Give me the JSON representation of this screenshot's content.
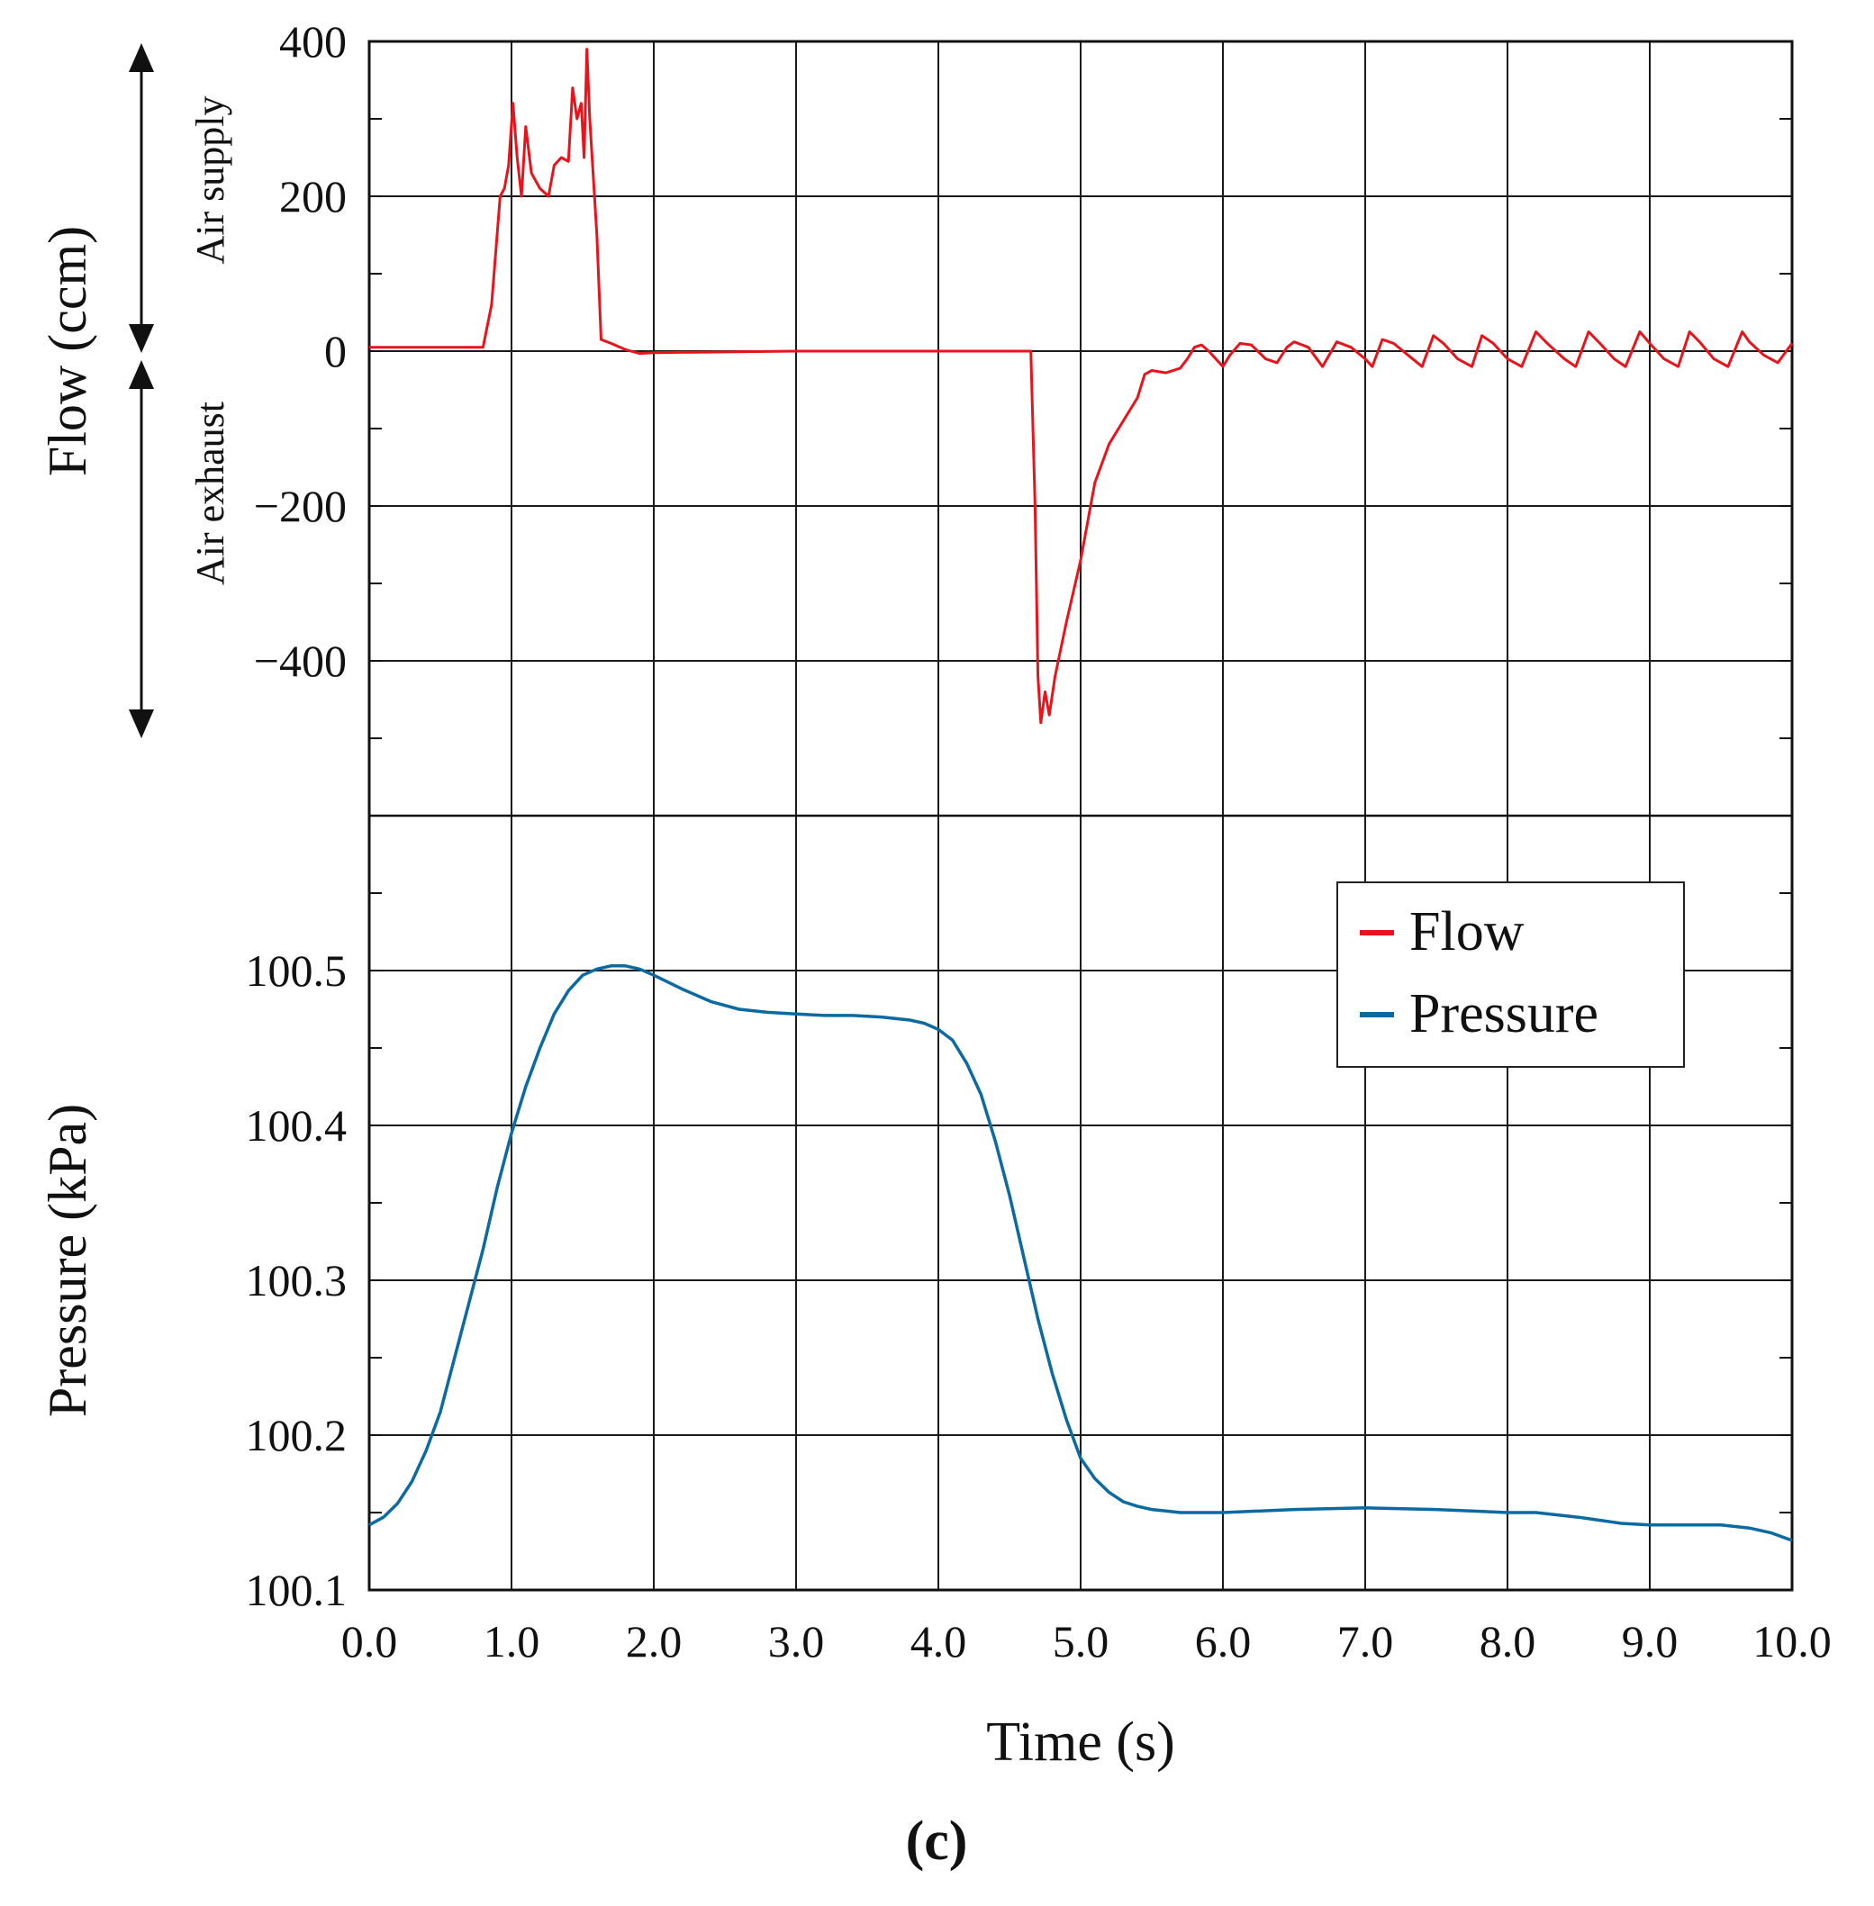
{
  "figure": {
    "panel_label": "(c)"
  },
  "colors": {
    "flow": "#e8141c",
    "pressure": "#0a6aa1",
    "grid": "#1a1a1a",
    "axis": "#111111"
  },
  "chart_data": {
    "type": "line",
    "x_axis": {
      "label": "Time (s)",
      "range": [
        0,
        10
      ],
      "ticks": [
        0,
        1,
        2,
        3,
        4,
        5,
        6,
        7,
        8,
        9,
        10
      ],
      "tick_labels": [
        "0.0",
        "1.0",
        "2.0",
        "3.0",
        "4.0",
        "5.0",
        "6.0",
        "7.0",
        "8.0",
        "9.0",
        "10.0"
      ]
    },
    "flow_axis": {
      "label": "Flow (ccm)",
      "range": [
        -600,
        400
      ],
      "ticks": [
        400,
        200,
        0,
        -200,
        -400
      ],
      "tick_labels": [
        "400",
        "200",
        "0",
        "−200",
        "−400"
      ],
      "annotations": [
        "Air supply",
        "Air exhaust"
      ]
    },
    "pressure_axis": {
      "label": "Pressure (kPa)",
      "range": [
        100.1,
        100.6
      ],
      "ticks": [
        100.5,
        100.4,
        100.3,
        100.2,
        100.1
      ],
      "tick_labels": [
        "100.5",
        "100.4",
        "100.3",
        "100.2",
        "100.1"
      ]
    },
    "legend": {
      "position": "right-middle",
      "entries": [
        "Flow",
        "Pressure"
      ]
    },
    "series": [
      {
        "name": "Flow",
        "axis": "flow",
        "points": [
          [
            0.0,
            5
          ],
          [
            0.8,
            5
          ],
          [
            0.86,
            60
          ],
          [
            0.92,
            200
          ],
          [
            0.95,
            210
          ],
          [
            0.98,
            240
          ],
          [
            1.01,
            320
          ],
          [
            1.04,
            250
          ],
          [
            1.07,
            200
          ],
          [
            1.1,
            290
          ],
          [
            1.14,
            230
          ],
          [
            1.2,
            210
          ],
          [
            1.26,
            200
          ],
          [
            1.3,
            240
          ],
          [
            1.35,
            250
          ],
          [
            1.4,
            245
          ],
          [
            1.43,
            340
          ],
          [
            1.46,
            300
          ],
          [
            1.49,
            320
          ],
          [
            1.51,
            250
          ],
          [
            1.53,
            390
          ],
          [
            1.55,
            300
          ],
          [
            1.6,
            150
          ],
          [
            1.63,
            15
          ],
          [
            1.7,
            10
          ],
          [
            1.8,
            2
          ],
          [
            1.9,
            -3
          ],
          [
            2.0,
            -2
          ],
          [
            3.0,
            0
          ],
          [
            4.0,
            0
          ],
          [
            4.65,
            0
          ],
          [
            4.68,
            -200
          ],
          [
            4.7,
            -420
          ],
          [
            4.72,
            -480
          ],
          [
            4.75,
            -440
          ],
          [
            4.78,
            -470
          ],
          [
            4.82,
            -420
          ],
          [
            4.9,
            -350
          ],
          [
            5.0,
            -270
          ],
          [
            5.1,
            -170
          ],
          [
            5.2,
            -120
          ],
          [
            5.3,
            -90
          ],
          [
            5.4,
            -60
          ],
          [
            5.45,
            -30
          ],
          [
            5.5,
            -25
          ],
          [
            5.6,
            -28
          ],
          [
            5.7,
            -22
          ],
          [
            5.75,
            -10
          ],
          [
            5.8,
            5
          ],
          [
            5.85,
            8
          ],
          [
            5.9,
            0
          ],
          [
            6.0,
            -20
          ],
          [
            6.05,
            -5
          ],
          [
            6.12,
            10
          ],
          [
            6.2,
            8
          ],
          [
            6.3,
            -10
          ],
          [
            6.38,
            -15
          ],
          [
            6.45,
            5
          ],
          [
            6.5,
            12
          ],
          [
            6.6,
            5
          ],
          [
            6.7,
            -20
          ],
          [
            6.8,
            12
          ],
          [
            6.9,
            5
          ],
          [
            7.0,
            -10
          ],
          [
            7.05,
            -20
          ],
          [
            7.12,
            15
          ],
          [
            7.2,
            10
          ],
          [
            7.3,
            -5
          ],
          [
            7.4,
            -20
          ],
          [
            7.48,
            20
          ],
          [
            7.55,
            10
          ],
          [
            7.65,
            -10
          ],
          [
            7.75,
            -20
          ],
          [
            7.82,
            20
          ],
          [
            7.9,
            10
          ],
          [
            8.0,
            -10
          ],
          [
            8.1,
            -20
          ],
          [
            8.2,
            25
          ],
          [
            8.28,
            10
          ],
          [
            8.4,
            -10
          ],
          [
            8.48,
            -20
          ],
          [
            8.57,
            25
          ],
          [
            8.65,
            10
          ],
          [
            8.75,
            -10
          ],
          [
            8.83,
            -20
          ],
          [
            8.93,
            25
          ],
          [
            9.0,
            10
          ],
          [
            9.1,
            -10
          ],
          [
            9.2,
            -20
          ],
          [
            9.28,
            25
          ],
          [
            9.35,
            12
          ],
          [
            9.45,
            -10
          ],
          [
            9.55,
            -20
          ],
          [
            9.65,
            25
          ],
          [
            9.7,
            12
          ],
          [
            9.8,
            -5
          ],
          [
            9.9,
            -15
          ],
          [
            10.0,
            10
          ]
        ]
      },
      {
        "name": "Pressure",
        "axis": "pressure",
        "points": [
          [
            0.0,
            100.142
          ],
          [
            0.1,
            100.147
          ],
          [
            0.2,
            100.156
          ],
          [
            0.3,
            100.17
          ],
          [
            0.4,
            100.19
          ],
          [
            0.5,
            100.215
          ],
          [
            0.6,
            100.25
          ],
          [
            0.7,
            100.285
          ],
          [
            0.8,
            100.32
          ],
          [
            0.9,
            100.36
          ],
          [
            1.0,
            100.395
          ],
          [
            1.1,
            100.425
          ],
          [
            1.2,
            100.45
          ],
          [
            1.3,
            100.472
          ],
          [
            1.4,
            100.487
          ],
          [
            1.5,
            100.497
          ],
          [
            1.6,
            100.501
          ],
          [
            1.7,
            100.503
          ],
          [
            1.8,
            100.503
          ],
          [
            1.9,
            100.501
          ],
          [
            2.0,
            100.497
          ],
          [
            2.2,
            100.488
          ],
          [
            2.4,
            100.48
          ],
          [
            2.6,
            100.475
          ],
          [
            2.8,
            100.473
          ],
          [
            3.0,
            100.472
          ],
          [
            3.2,
            100.471
          ],
          [
            3.4,
            100.471
          ],
          [
            3.6,
            100.47
          ],
          [
            3.8,
            100.468
          ],
          [
            3.9,
            100.466
          ],
          [
            4.0,
            100.462
          ],
          [
            4.1,
            100.455
          ],
          [
            4.2,
            100.44
          ],
          [
            4.3,
            100.42
          ],
          [
            4.4,
            100.39
          ],
          [
            4.5,
            100.355
          ],
          [
            4.6,
            100.315
          ],
          [
            4.7,
            100.275
          ],
          [
            4.8,
            100.24
          ],
          [
            4.9,
            100.21
          ],
          [
            5.0,
            100.185
          ],
          [
            5.1,
            100.172
          ],
          [
            5.2,
            100.163
          ],
          [
            5.3,
            100.157
          ],
          [
            5.4,
            100.154
          ],
          [
            5.5,
            100.152
          ],
          [
            5.6,
            100.151
          ],
          [
            5.7,
            100.15
          ],
          [
            6.0,
            100.15
          ],
          [
            6.5,
            100.152
          ],
          [
            7.0,
            100.153
          ],
          [
            7.5,
            100.152
          ],
          [
            8.0,
            100.15
          ],
          [
            8.2,
            100.15
          ],
          [
            8.5,
            100.147
          ],
          [
            8.8,
            100.143
          ],
          [
            9.0,
            100.142
          ],
          [
            9.3,
            100.142
          ],
          [
            9.5,
            100.142
          ],
          [
            9.7,
            100.14
          ],
          [
            9.85,
            100.137
          ],
          [
            10.0,
            100.132
          ]
        ]
      }
    ]
  }
}
